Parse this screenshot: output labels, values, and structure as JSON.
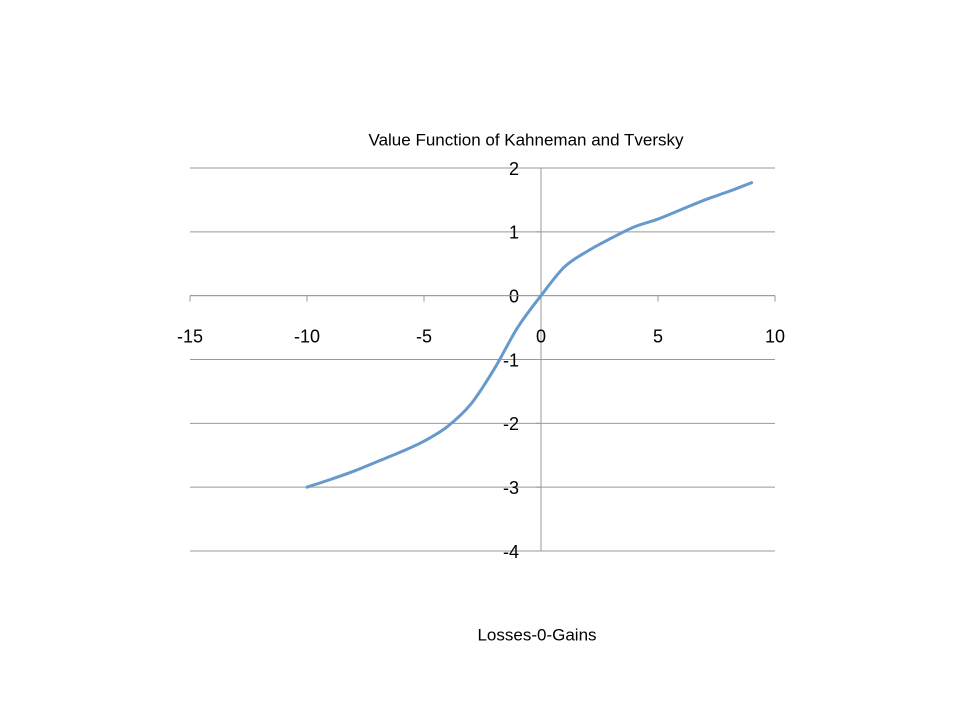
{
  "chart_data": {
    "type": "line",
    "title": "Value Function of Kahneman and Tversky",
    "x_label": "Losses-0-Gains",
    "x": [
      -10,
      -9,
      -8,
      -7,
      -6,
      -5,
      -4,
      -3,
      -2,
      -1,
      0,
      1,
      2,
      3,
      4,
      5,
      6,
      7,
      8,
      9
    ],
    "series": [
      {
        "color": "#6699cc",
        "values": [
          -3.0,
          -2.88,
          -2.75,
          -2.6,
          -2.45,
          -2.28,
          -2.05,
          -1.7,
          -1.15,
          -0.5,
          0,
          0.45,
          0.7,
          0.9,
          1.08,
          1.2,
          1.35,
          1.5,
          1.63,
          1.77
        ]
      }
    ],
    "xlim": [
      -15,
      10
    ],
    "xticks": [
      -15,
      -10,
      -5,
      0,
      5,
      10
    ],
    "ylim": [
      -4,
      2
    ],
    "yticks": [
      -4,
      -3,
      -2,
      -1,
      0,
      1,
      2
    ],
    "grid": true
  }
}
